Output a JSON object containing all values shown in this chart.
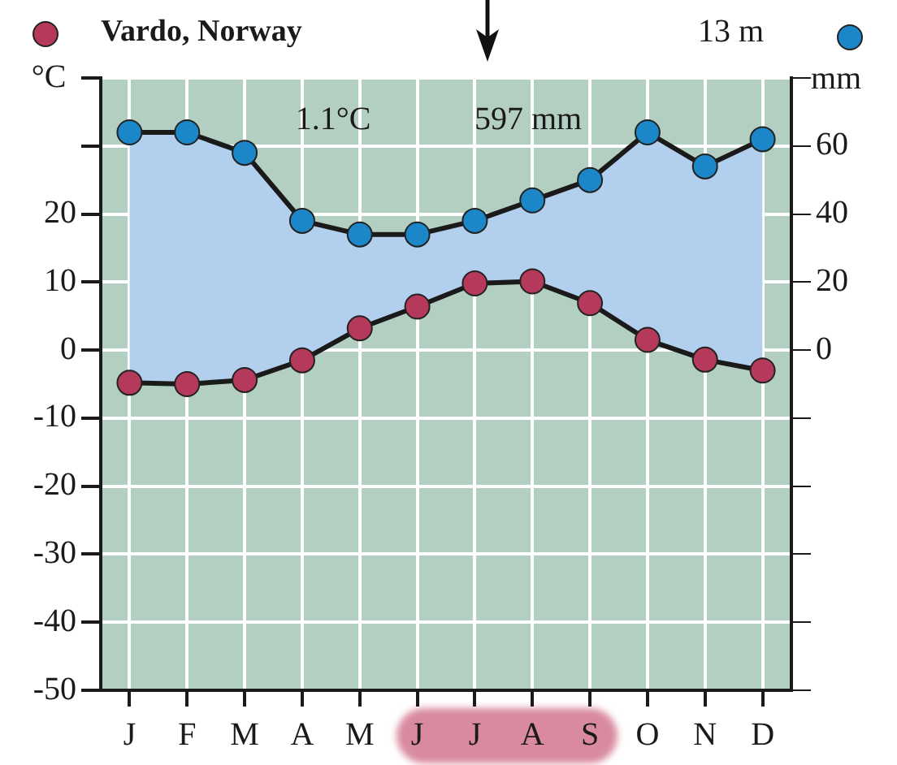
{
  "chart_data": {
    "type": "line",
    "title": "Vardo, Norway",
    "ylabel": "°C",
    "y2label": "mm",
    "annotations": [
      "13 m",
      "1.1°C",
      "597 mm"
    ],
    "categories": [
      "J",
      "F",
      "M",
      "A",
      "M",
      "J",
      "J",
      "A",
      "S",
      "O",
      "N",
      "D"
    ],
    "series": [
      {
        "color": "#b5395a",
        "axis": "y",
        "values": [
          -4.8,
          -5.0,
          -4.4,
          -1.5,
          3.2,
          6.4,
          9.8,
          10.1,
          6.9,
          1.5,
          -1.4,
          -3.0
        ]
      },
      {
        "color": "#1b86c8",
        "axis": "y2",
        "values": [
          64,
          64,
          58,
          38,
          34,
          34,
          38,
          44,
          50,
          64,
          54,
          62
        ],
        "lower": [
          -9.6,
          -10,
          -8.8,
          -3,
          6.4,
          12.8,
          19.6,
          20.2,
          13.8,
          3,
          -2.8,
          -6
        ],
        "upper": [
          64,
          64,
          58,
          38,
          34,
          34,
          38,
          44,
          50,
          64,
          54,
          62
        ]
      }
    ],
    "ylim": [
      -50,
      40
    ],
    "yticks": [
      -50,
      -40,
      -30,
      -20,
      -10,
      0,
      10,
      20,
      {
        "value": 30,
        "label": null
      },
      {
        "value": 40,
        "label": null
      }
    ],
    "y2lim": [
      -100,
      80
    ],
    "y2ticks": [
      {
        "value": -100,
        "label": null
      },
      {
        "value": -80,
        "label": null
      },
      {
        "value": -60,
        "label": null
      },
      {
        "value": -40,
        "label": null
      },
      {
        "value": -20,
        "label": null
      },
      0,
      20,
      40,
      60,
      {
        "value": 80,
        "label": null
      }
    ],
    "grid": true,
    "legend": false,
    "marker": "circle",
    "line_style": "solid"
  }
}
